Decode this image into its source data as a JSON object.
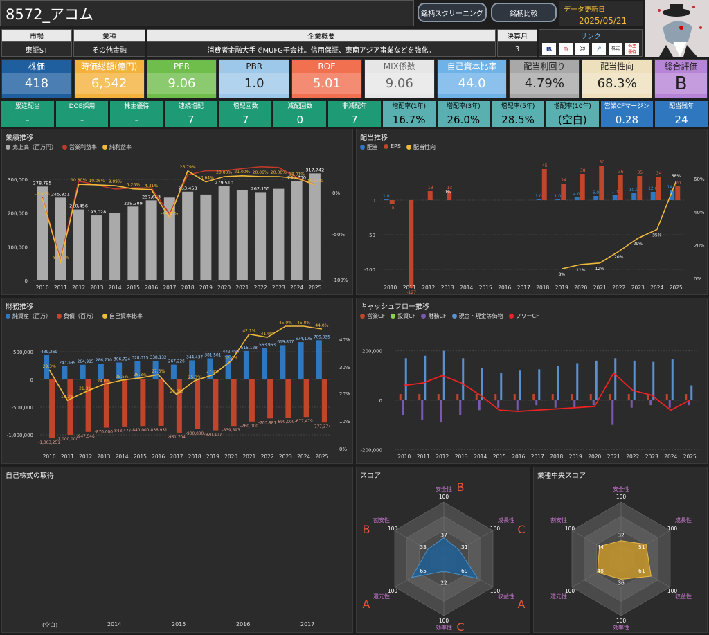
{
  "header": {
    "title": "8572_アコム",
    "btn_screening": "銘柄スクリーニング",
    "btn_compare": "銘柄比較",
    "update_label": "データ更新日",
    "update_date": "2025/05/21"
  },
  "info": {
    "market_h": "市場",
    "market": "東証ST",
    "industry_h": "業種",
    "industry": "その他金融",
    "summary_h": "企業概要",
    "summary": "消費者金融大手でMUFG子会社。信用保証、東南アジア事業などを強化。",
    "fy_h": "決算月",
    "fy": "3",
    "links_h": "リンク",
    "link_labels": [
      "IR BANK",
      "Kabutan",
      "",
      "",
      "",
      "株主優待"
    ]
  },
  "metrics": [
    {
      "label": "株価",
      "value": "418",
      "bg": "#1f5fa0",
      "fg": "#fff"
    },
    {
      "label": "時価総額(億円)",
      "value": "6,542",
      "bg": "#f3b23c",
      "fg": "#fff"
    },
    {
      "label": "PER",
      "value": "9.06",
      "bg": "#6fbd4a",
      "fg": "#fff"
    },
    {
      "label": "PBR",
      "value": "1.0",
      "bg": "#9ec8ea",
      "fg": "#222"
    },
    {
      "label": "ROE",
      "value": "5.01",
      "bg": "#f07050",
      "fg": "#fff"
    },
    {
      "label": "MIX係数",
      "value": "9.06",
      "bg": "#e6e6e6",
      "fg": "#666"
    },
    {
      "label": "自己資本比率",
      "value": "44.0",
      "bg": "#6fb2e8",
      "fg": "#fff"
    },
    {
      "label": "配当利回り",
      "value": "4.79%",
      "bg": "#a8a8a8",
      "fg": "#222"
    },
    {
      "label": "配当性向",
      "value": "68.3%",
      "bg": "#eee0bd",
      "fg": "#222"
    },
    {
      "label": "総合評価",
      "value": "B",
      "bg": "#b785d8",
      "fg": "#222"
    }
  ],
  "small": [
    {
      "label": "累進配当",
      "value": "-",
      "bg": "#1e9a74"
    },
    {
      "label": "DOE採用",
      "value": "-",
      "bg": "#1e9a74"
    },
    {
      "label": "株主優待",
      "value": "-",
      "bg": "#1e9a74"
    },
    {
      "label": "連続増配",
      "value": "7",
      "bg": "#1e9a74"
    },
    {
      "label": "増配回数",
      "value": "7",
      "bg": "#1e9a74"
    },
    {
      "label": "減配回数",
      "value": "0",
      "bg": "#1e9a74"
    },
    {
      "label": "非減配年",
      "value": "7",
      "bg": "#1e9a74"
    },
    {
      "label": "増配率(1年)",
      "value": "16.7%",
      "bg": "#5ab0b0"
    },
    {
      "label": "増配率(3年)",
      "value": "26.0%",
      "bg": "#5ab0b0"
    },
    {
      "label": "増配率(5年)",
      "value": "28.5%",
      "bg": "#5ab0b0"
    },
    {
      "label": "増配率(10年)",
      "value": "(空白)",
      "bg": "#5ab0b0"
    },
    {
      "label": "営業CFマージン",
      "value": "0.28",
      "bg": "#2f78c0"
    },
    {
      "label": "配当残年",
      "value": "24",
      "bg": "#2f78c0"
    }
  ],
  "panels": {
    "perf": "業績推移",
    "div": "配当推移",
    "fin": "財務推移",
    "cf": "キャッシュフロー推移",
    "buyback": "自己株式の取得",
    "score": "スコア",
    "median": "業種中央スコア"
  },
  "years": [
    "2010",
    "2011",
    "2012",
    "2013",
    "2014",
    "2015",
    "2016",
    "2017",
    "2018",
    "2019",
    "2020",
    "2021",
    "2022",
    "2023",
    "2024",
    "2025"
  ],
  "chart_data": [
    {
      "type": "bar",
      "title": "業績推移",
      "legend": [
        "売上高（百万円）",
        "営業利益率",
        "純利益率"
      ],
      "sales": [
        278795,
        245831,
        210456,
        193028,
        201000,
        219289,
        237683,
        246000,
        263453,
        255000,
        279510,
        268000,
        262155,
        272000,
        294730,
        317742
      ],
      "sales_labels": [
        "278,795",
        "245,831",
        "210,456",
        "193,028",
        "",
        "219,289",
        "237,683",
        "",
        "263,453",
        "",
        "279,510",
        "",
        "262,155",
        "",
        "294,730",
        "317,742"
      ],
      "op_margin": [
        -5,
        -80,
        14.65,
        10.0,
        5.0,
        6.42,
        6.53,
        -25.0,
        22.0,
        27.06,
        27.0,
        29.61,
        31.88,
        31.0,
        19.0,
        10.11
      ],
      "net_margin": [
        -6,
        -82.43,
        10.8,
        10.06,
        9.09,
        5.26,
        4.31,
        -29.45,
        26.79,
        13.64,
        20.0,
        21.0,
        20.06,
        20.0,
        18.01,
        10.11
      ],
      "y_ticks": [
        "300,000",
        "200,000",
        "100,000",
        "0"
      ],
      "y2_ticks": [
        "0%",
        "-50%",
        "-100%"
      ]
    },
    {
      "type": "bar",
      "title": "配当推移",
      "legend": [
        "配当",
        "EPS",
        "配当性向"
      ],
      "div": [
        1.0,
        0,
        0,
        0,
        0,
        0,
        0,
        0,
        1.0,
        1.0,
        4.0,
        6.0,
        7.0,
        10.0,
        12.0,
        14.0
      ],
      "eps": [
        -5,
        -127,
        13,
        13,
        0,
        0,
        0,
        0,
        45,
        24,
        38,
        50,
        36,
        35,
        34,
        20
      ],
      "payout": [
        null,
        null,
        null,
        0,
        null,
        null,
        null,
        null,
        null,
        8,
        11,
        12,
        20,
        29,
        35,
        68
      ],
      "y_ticks": [
        "0",
        "-50",
        "-100"
      ],
      "y2_ticks": [
        "60%",
        "40%",
        "20%",
        "0%"
      ]
    },
    {
      "type": "bar",
      "title": "財務推移",
      "legend": [
        "純資産（百万）",
        "負債（百万）",
        "自己資本比率"
      ],
      "equity": [
        439269,
        243599,
        264915,
        286710,
        306724,
        328315,
        338132,
        267226,
        344437,
        381501,
        442496,
        515128,
        563963,
        619837,
        674175,
        709035
      ],
      "debt": [
        -1063251,
        -1000000,
        -947546,
        -870000,
        -848477,
        -840000,
        -836931,
        -961704,
        -900000,
        -920407,
        -839893,
        -760000,
        -703981,
        -690000,
        -677479,
        -777374
      ],
      "ratio": [
        29.3,
        18.2,
        21.3,
        24.0,
        25.5,
        26.3,
        27.5,
        20.3,
        25.3,
        27.4,
        32.4,
        42.1,
        41.0,
        45.0,
        45.0,
        44.0
      ],
      "y_ticks": [
        "500,000",
        "0",
        "-500,000",
        "-1,000,000"
      ],
      "y2_ticks": [
        "40%",
        "30%",
        "20%",
        "10%",
        "0%"
      ]
    },
    {
      "type": "bar",
      "title": "キャッシュフロー推移",
      "legend": [
        "営業CF",
        "投資CF",
        "財務CF",
        "現金・現金等価物",
        "フリーCF"
      ],
      "y_ticks": [
        "200,000",
        "0",
        "-200,000"
      ]
    },
    {
      "type": "radar",
      "title": "スコア",
      "axes": [
        "安全性",
        "成長性",
        "収益性",
        "効率性",
        "還元性",
        "割安性"
      ],
      "values": [
        37,
        31,
        69,
        22,
        65,
        33
      ],
      "max": "100",
      "grades": [
        "B",
        "C",
        "A",
        "C",
        "A",
        "B"
      ]
    },
    {
      "type": "radar",
      "title": "業種中央スコア",
      "axes": [
        "安全性",
        "成長性",
        "収益性",
        "効率性",
        "還元性",
        "割安性"
      ],
      "values": [
        32,
        51,
        61,
        36,
        48,
        44
      ],
      "max": "100"
    }
  ],
  "buyback_xlabels": [
    "(空白)",
    "2014",
    "2015",
    "2016",
    "2017"
  ]
}
